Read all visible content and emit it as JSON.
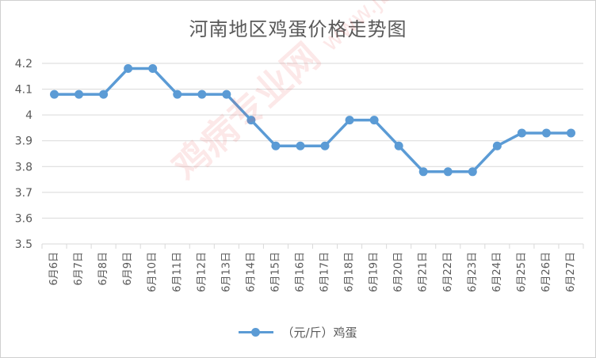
{
  "chart_data": {
    "type": "line",
    "title": "河南地区鸡蛋价格走势图",
    "xlabel": "",
    "ylabel": "",
    "categories": [
      "6月6日",
      "6月7日",
      "6月8日",
      "6月9日",
      "6月10日",
      "6月11日",
      "6月12日",
      "6月13日",
      "6月14日",
      "6月15日",
      "6月16日",
      "6月17日",
      "6月18日",
      "6月19日",
      "6月20日",
      "6月21日",
      "6月22日",
      "6月23日",
      "6月24日",
      "6月25日",
      "6月26日",
      "6月27日"
    ],
    "series": [
      {
        "name": "（元/斤）鸡蛋",
        "values": [
          4.08,
          4.08,
          4.08,
          4.18,
          4.18,
          4.08,
          4.08,
          4.08,
          3.98,
          3.88,
          3.88,
          3.88,
          3.98,
          3.98,
          3.88,
          3.78,
          3.78,
          3.78,
          3.88,
          3.93,
          3.93,
          3.93
        ]
      }
    ],
    "yticks": [
      "4.2",
      "4.1",
      "4",
      "3.9",
      "3.8",
      "3.7",
      "3.6",
      "3.5"
    ],
    "ylim": [
      3.5,
      4.2
    ],
    "grid": true,
    "legend_position": "bottom",
    "colors": {
      "series": "#5b9bd5",
      "grid": "#d9d9d9",
      "text": "#595959"
    }
  },
  "watermark": "鸡病专业网 www.jbzyw.com"
}
